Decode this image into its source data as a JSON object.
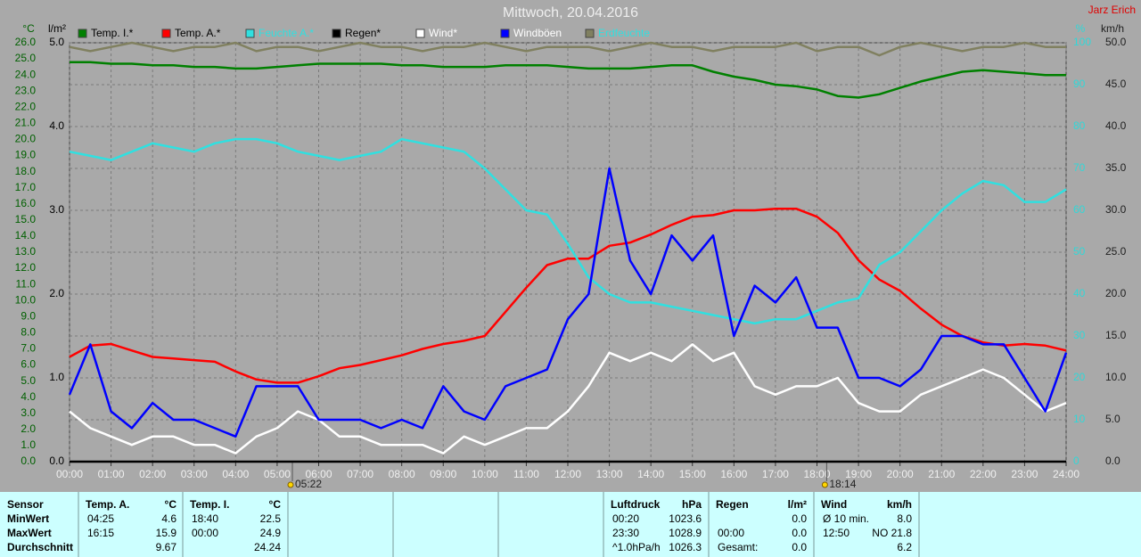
{
  "chart_data": {
    "type": "line",
    "title": "Mittwoch, 20.04.2016",
    "author": "Jarz Erich",
    "x": [
      0,
      0.5,
      1,
      1.5,
      2,
      2.5,
      3,
      3.5,
      4,
      4.5,
      5,
      5.5,
      6,
      6.5,
      7,
      7.5,
      8,
      8.5,
      9,
      9.5,
      10,
      10.5,
      11,
      11.5,
      12,
      12.5,
      13,
      13.5,
      14,
      14.5,
      15,
      15.5,
      16,
      16.5,
      17,
      17.5,
      18,
      18.5,
      19,
      19.5,
      20,
      20.5,
      21,
      21.5,
      22,
      22.5,
      23,
      23.5,
      24
    ],
    "xlim": [
      0,
      24
    ],
    "xticks": [
      {
        "value": 0,
        "label": "00:00"
      },
      {
        "value": 1,
        "label": "01:00"
      },
      {
        "value": 2,
        "label": "02:00"
      },
      {
        "value": 3,
        "label": "03:00"
      },
      {
        "value": 4,
        "label": "04:00"
      },
      {
        "value": 5,
        "label": "05:00"
      },
      {
        "value": 6,
        "label": "06:00"
      },
      {
        "value": 7,
        "label": "07:00"
      },
      {
        "value": 8,
        "label": "08:00"
      },
      {
        "value": 9,
        "label": "09:00"
      },
      {
        "value": 10,
        "label": "10:00"
      },
      {
        "value": 11,
        "label": "11:00"
      },
      {
        "value": 12,
        "label": "12:00"
      },
      {
        "value": 13,
        "label": "13:00"
      },
      {
        "value": 14,
        "label": "14:00"
      },
      {
        "value": 15,
        "label": "15:00"
      },
      {
        "value": 16,
        "label": "16:00"
      },
      {
        "value": 17,
        "label": "17:00"
      },
      {
        "value": 18,
        "label": "18:00"
      },
      {
        "value": 19,
        "label": "19:00"
      },
      {
        "value": 20,
        "label": "20:00"
      },
      {
        "value": 21,
        "label": "21:00"
      },
      {
        "value": 22,
        "label": "22:00"
      },
      {
        "value": 23,
        "label": "23:00"
      },
      {
        "value": 24,
        "label": "24:00"
      }
    ],
    "markers": [
      {
        "value": 5.3667,
        "label": "05:22"
      },
      {
        "value": 18.2333,
        "label": "18:14"
      }
    ],
    "ylabel": "°C",
    "ylim": [
      0,
      26
    ],
    "yticks": [
      {
        "value": 0,
        "label": "0.0"
      },
      {
        "value": 1,
        "label": "1.0"
      },
      {
        "value": 2,
        "label": "2.0"
      },
      {
        "value": 3,
        "label": "3.0"
      },
      {
        "value": 4,
        "label": "4.0"
      },
      {
        "value": 5,
        "label": "5.0"
      },
      {
        "value": 6,
        "label": "6.0"
      },
      {
        "value": 7,
        "label": "7.0"
      },
      {
        "value": 8,
        "label": "8.0"
      },
      {
        "value": 9,
        "label": "9.0"
      },
      {
        "value": 10,
        "label": "10.0"
      },
      {
        "value": 11,
        "label": "11.0"
      },
      {
        "value": 12,
        "label": "12.0"
      },
      {
        "value": 13,
        "label": "13.0"
      },
      {
        "value": 14,
        "label": "14.0"
      },
      {
        "value": 15,
        "label": "15.0"
      },
      {
        "value": 16,
        "label": "16.0"
      },
      {
        "value": 17,
        "label": "17.0"
      },
      {
        "value": 18,
        "label": "18.0"
      },
      {
        "value": 19,
        "label": "19.0"
      },
      {
        "value": 20,
        "label": "20.0"
      },
      {
        "value": 21,
        "label": "21.0"
      },
      {
        "value": 22,
        "label": "22.0"
      },
      {
        "value": 23,
        "label": "23.0"
      },
      {
        "value": 24,
        "label": "24.0"
      },
      {
        "value": 25,
        "label": "25.0"
      },
      {
        "value": 26,
        "label": "26.0"
      }
    ],
    "y2label": "l/m²",
    "y2lim": [
      0,
      5
    ],
    "y2ticks": [
      {
        "value": 0,
        "label": "0.0"
      },
      {
        "value": 1,
        "label": "1.0"
      },
      {
        "value": 2,
        "label": "2.0"
      },
      {
        "value": 3,
        "label": "3.0"
      },
      {
        "value": 4,
        "label": "4.0"
      },
      {
        "value": 5,
        "label": "5.0"
      }
    ],
    "y3label": "%",
    "y3lim": [
      0,
      100
    ],
    "y3ticks": [
      0,
      10,
      20,
      30,
      40,
      50,
      60,
      70,
      80,
      90,
      100
    ],
    "y4label": "km/h",
    "y4lim": [
      0,
      50
    ],
    "y4ticks": [
      {
        "value": 0,
        "label": "0.0"
      },
      {
        "value": 5,
        "label": "5.0"
      },
      {
        "value": 10,
        "label": "10.0"
      },
      {
        "value": 15,
        "label": "15.0"
      },
      {
        "value": 20,
        "label": "20.0"
      },
      {
        "value": 25,
        "label": "25.0"
      },
      {
        "value": 30,
        "label": "30.0"
      },
      {
        "value": 35,
        "label": "35.0"
      },
      {
        "value": 40,
        "label": "40.0"
      },
      {
        "value": 45,
        "label": "45.0"
      },
      {
        "value": 50,
        "label": "50.0"
      }
    ],
    "grid": true,
    "series": [
      {
        "name": "Temp. I.*",
        "color": "#008000",
        "axis": "y",
        "values": [
          24.8,
          24.8,
          24.7,
          24.7,
          24.6,
          24.6,
          24.5,
          24.5,
          24.4,
          24.4,
          24.5,
          24.6,
          24.7,
          24.7,
          24.7,
          24.7,
          24.6,
          24.6,
          24.5,
          24.5,
          24.5,
          24.6,
          24.6,
          24.6,
          24.5,
          24.4,
          24.4,
          24.4,
          24.5,
          24.6,
          24.6,
          24.2,
          23.9,
          23.7,
          23.4,
          23.3,
          23.1,
          22.7,
          22.6,
          22.8,
          23.2,
          23.6,
          23.9,
          24.2,
          24.3,
          24.2,
          24.1,
          24.0,
          24.0
        ]
      },
      {
        "name": "Temp. A.*",
        "color": "#ff0000",
        "axis": "y",
        "values": [
          6.5,
          7.2,
          7.3,
          6.9,
          6.5,
          6.4,
          6.3,
          6.2,
          5.6,
          5.1,
          4.9,
          4.9,
          5.3,
          5.8,
          6.0,
          6.3,
          6.6,
          7.0,
          7.3,
          7.5,
          7.8,
          9.3,
          10.8,
          12.2,
          12.6,
          12.6,
          13.4,
          13.6,
          14.1,
          14.7,
          15.2,
          15.3,
          15.6,
          15.6,
          15.7,
          15.7,
          15.2,
          14.2,
          12.5,
          11.3,
          10.6,
          9.5,
          8.5,
          7.8,
          7.4,
          7.2,
          7.3,
          7.2,
          6.9
        ]
      },
      {
        "name": "Feuchte A.*",
        "color": "#30e0e0",
        "axis": "y3",
        "values": [
          74,
          73,
          72,
          74,
          76,
          75,
          74,
          76,
          77,
          77,
          76,
          74,
          73,
          72,
          73,
          74,
          77,
          76,
          75,
          74,
          70,
          65,
          60,
          59,
          52,
          44,
          40,
          38,
          38,
          37,
          36,
          35,
          34,
          33,
          34,
          34,
          36,
          38,
          39,
          47,
          50,
          55,
          60,
          64,
          67,
          66,
          62,
          62,
          65
        ]
      },
      {
        "name": "Regen*",
        "color": "#000000",
        "axis": "y2",
        "values": [
          0,
          0,
          0,
          0,
          0,
          0,
          0,
          0,
          0,
          0,
          0,
          0,
          0,
          0,
          0,
          0,
          0,
          0,
          0,
          0,
          0,
          0,
          0,
          0,
          0,
          0,
          0,
          0,
          0,
          0,
          0,
          0,
          0,
          0,
          0,
          0,
          0,
          0,
          0,
          0,
          0,
          0,
          0,
          0,
          0,
          0,
          0,
          0,
          0
        ]
      },
      {
        "name": "Wind*",
        "color": "#ffffff",
        "axis": "y4",
        "values": [
          6,
          4,
          3,
          2,
          3,
          3,
          2,
          2,
          1,
          3,
          4,
          6,
          5,
          3,
          3,
          2,
          2,
          2,
          1,
          3,
          2,
          3,
          4,
          4,
          6,
          9,
          13,
          12,
          13,
          12,
          14,
          12,
          13,
          9,
          8,
          9,
          9,
          10,
          7,
          6,
          6,
          8,
          9,
          10,
          11,
          10,
          8,
          6,
          7
        ]
      },
      {
        "name": "Windböen",
        "color": "#0000ff",
        "axis": "y4",
        "values": [
          8,
          14,
          6,
          4,
          7,
          5,
          5,
          4,
          3,
          9,
          9,
          9,
          5,
          5,
          5,
          4,
          5,
          4,
          9,
          6,
          5,
          9,
          10,
          11,
          17,
          20,
          35,
          24,
          20,
          27,
          24,
          27,
          15,
          21,
          19,
          22,
          16,
          16,
          10,
          10,
          9,
          11,
          15,
          15,
          14,
          14,
          10,
          6,
          13
        ]
      },
      {
        "name": "Erdfeuchte",
        "color": "#808060",
        "axis": "y3",
        "values": [
          99,
          98,
          99,
          100,
          99,
          98,
          99,
          99,
          100,
          98,
          99,
          99,
          98,
          99,
          100,
          99,
          99,
          98,
          99,
          99,
          100,
          99,
          98,
          99,
          99,
          99,
          98,
          99,
          100,
          99,
          99,
          98,
          99,
          99,
          99,
          100,
          98,
          99,
          99,
          97,
          99,
          100,
          99,
          98,
          99,
          99,
          100,
          99,
          99
        ]
      }
    ]
  },
  "table": {
    "row_labels": {
      "header": "Sensor",
      "rows": [
        "MinWert",
        "MaxWert",
        "Durchschnitt"
      ]
    },
    "sections": [
      {
        "header": [
          "Temp. A.",
          "°C"
        ],
        "rows": [
          [
            "04:25",
            "4.6"
          ],
          [
            "16:15",
            "15.9"
          ],
          [
            null,
            "9.67"
          ]
        ]
      },
      {
        "header": [
          "Temp. I.",
          "°C"
        ],
        "rows": [
          [
            "18:40",
            "22.5"
          ],
          [
            "00:00",
            "24.9"
          ],
          [
            null,
            "24.24"
          ]
        ]
      },
      {
        "header": [
          "Luftdruck",
          "hPa"
        ],
        "rows": [
          [
            "00:20",
            "1023.6"
          ],
          [
            "23:30",
            "1028.9"
          ],
          [
            "^1.0hPa/h",
            "1026.3"
          ]
        ]
      },
      {
        "header": [
          "Regen",
          "l/m²"
        ],
        "rows": [
          [
            null,
            "0.0"
          ],
          [
            "00:00",
            "0.0"
          ],
          [
            "Gesamt:",
            "0.0"
          ]
        ]
      },
      {
        "header": [
          "Wind",
          "km/h"
        ],
        "rows": [
          [
            "Ø 10 min.",
            "8.0"
          ],
          [
            "12:50",
            "NO 21.8"
          ],
          [
            null,
            "6.2"
          ]
        ]
      }
    ]
  }
}
